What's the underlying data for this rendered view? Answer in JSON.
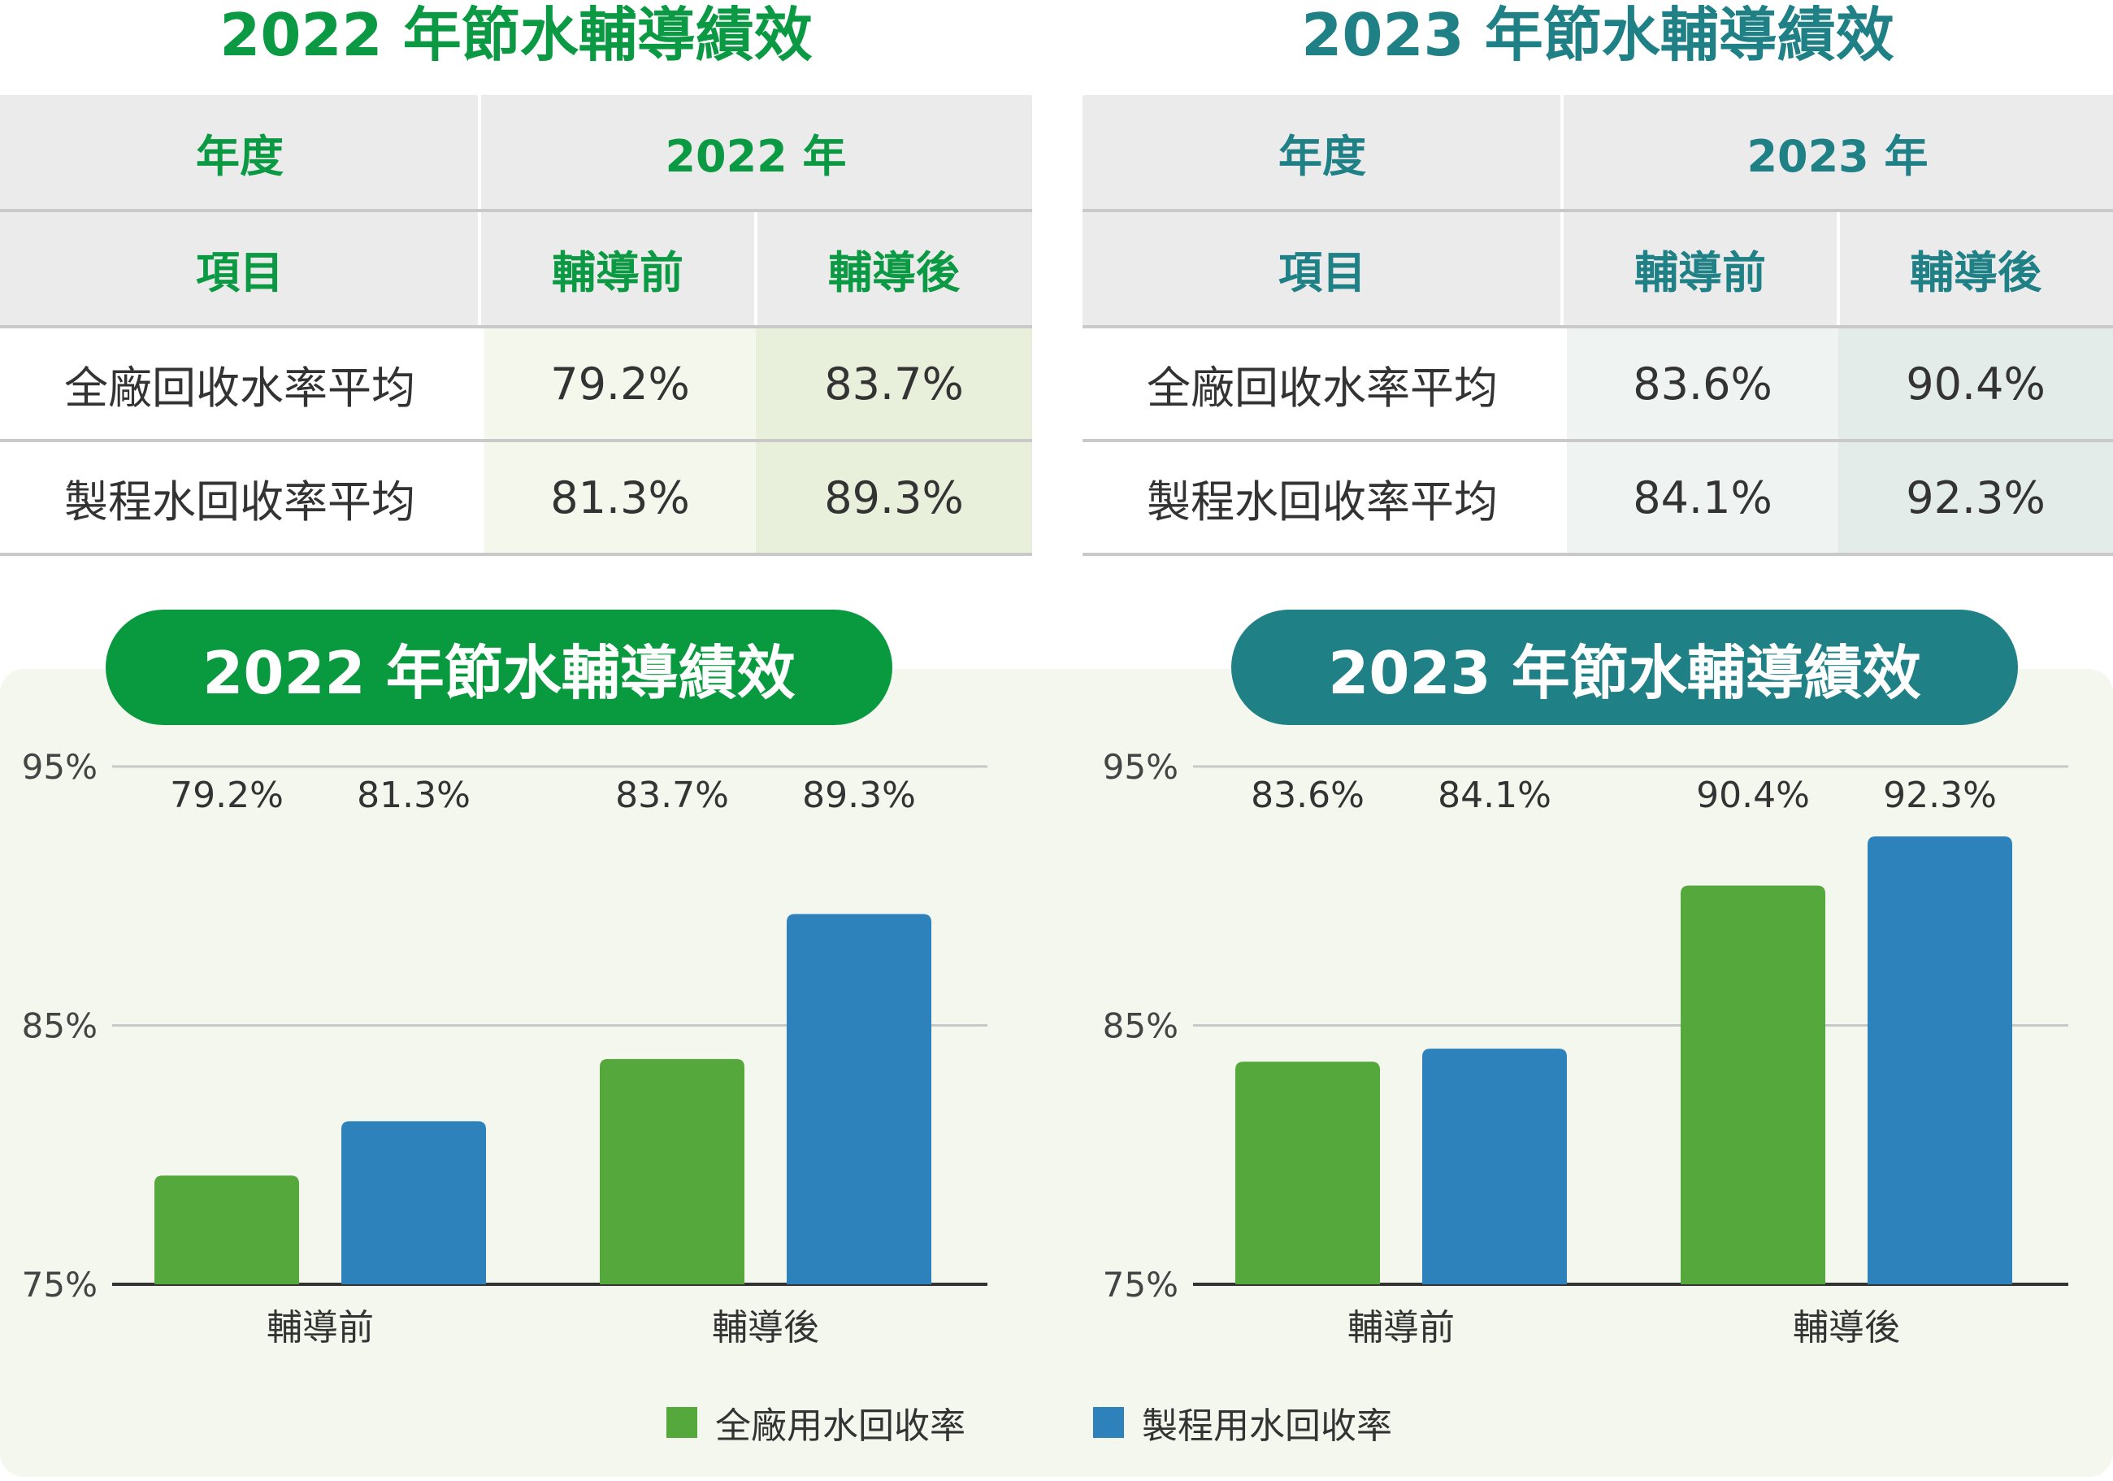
{
  "titles": {
    "t2022": "2022 年節水輔導績效",
    "t2023": "2023 年節水輔導績效"
  },
  "tables": [
    {
      "year_header": "年度",
      "year_value": "2022 年",
      "item_header": "項目",
      "before_label": "輔導前",
      "after_label": "輔導後",
      "rows": [
        {
          "label": "全廠回收水率平均",
          "before": "79.2%",
          "after": "83.7%"
        },
        {
          "label": "製程水回收率平均",
          "before": "81.3%",
          "after": "89.3%"
        }
      ]
    },
    {
      "year_header": "年度",
      "year_value": "2023 年",
      "item_header": "項目",
      "before_label": "輔導前",
      "after_label": "輔導後",
      "rows": [
        {
          "label": "全廠回收水率平均",
          "before": "83.6%",
          "after": "90.4%"
        },
        {
          "label": "製程水回收率平均",
          "before": "84.1%",
          "after": "92.3%"
        }
      ]
    }
  ],
  "colors": {
    "green": "#55a83c",
    "blue": "#2e82bb",
    "title_green": "#0b9a43",
    "title_teal": "#1f8086",
    "panel_bg": "#f4f7ee",
    "cell_green_1": "#f3f7ec",
    "cell_green_2": "#e8f0dc",
    "cell_teal_1": "#eff3f2",
    "cell_teal_2": "#e4ecea"
  },
  "legend": {
    "series1": "全廠用水回收率",
    "series2": "製程用水回收率"
  },
  "chart_data": [
    {
      "type": "bar",
      "title": "2022 年節水輔導績效",
      "categories": [
        "輔導前",
        "輔導後"
      ],
      "series": [
        {
          "name": "全廠用水回收率",
          "values": [
            79.2,
            83.7
          ]
        },
        {
          "name": "製程用水回收率",
          "values": [
            81.3,
            89.3
          ]
        }
      ],
      "data_labels": [
        "79.2%",
        "81.3%",
        "83.7%",
        "89.3%"
      ],
      "yticks": [
        "75%",
        "85%",
        "95%"
      ],
      "ylim": [
        75,
        95
      ],
      "grid": true,
      "legend_position": "bottom"
    },
    {
      "type": "bar",
      "title": "2023 年節水輔導績效",
      "categories": [
        "輔導前",
        "輔導後"
      ],
      "series": [
        {
          "name": "全廠用水回收率",
          "values": [
            83.6,
            90.4
          ]
        },
        {
          "name": "製程用水回收率",
          "values": [
            84.1,
            92.3
          ]
        }
      ],
      "data_labels": [
        "83.6%",
        "84.1%",
        "90.4%",
        "92.3%"
      ],
      "yticks": [
        "75%",
        "85%",
        "95%"
      ],
      "ylim": [
        75,
        95
      ],
      "grid": true,
      "legend_position": "bottom"
    }
  ]
}
